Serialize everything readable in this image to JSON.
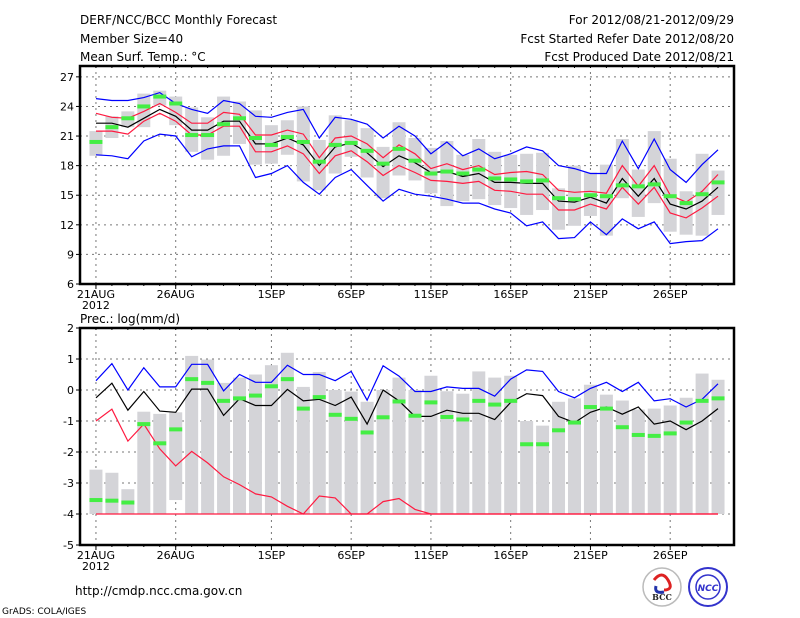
{
  "header": {
    "title": "DERF/NCC/BCC Monthly Forecast",
    "member_size": "Member Size=40",
    "variable": "Mean Surf. Temp.: °C",
    "period": "For 2012/08/21-2012/09/29",
    "started": "Fcst Started Refer Date 2012/08/20",
    "produced": "Fcst Produced Date 2012/08/21"
  },
  "footer": {
    "url": "http://cmdp.ncc.cma.gov.cn",
    "grads": "GrADS: COLA/IGES",
    "logo_bcc": "BCC",
    "logo_ncc": "NCC"
  },
  "colors": {
    "max_min": "#0000ff",
    "spread": "#ff1a40",
    "mean": "#000000",
    "green": "#44ee44",
    "gray": "#d4d4d8"
  },
  "chart_data": [
    {
      "type": "line",
      "title": "Mean Surf. Temp.: °C",
      "ylim": [
        6,
        28.1
      ],
      "yticks": [
        6,
        9,
        12,
        15,
        18,
        21,
        24,
        27
      ],
      "xlim_days": [
        0,
        41
      ],
      "xticks": [
        {
          "day": 1,
          "label": "21AUG",
          "sub": "2012"
        },
        {
          "day": 6,
          "label": "26AUG"
        },
        {
          "day": 12,
          "label": "1SEP"
        },
        {
          "day": 17,
          "label": "6SEP"
        },
        {
          "day": 22,
          "label": "11SEP"
        },
        {
          "day": 27,
          "label": "16SEP"
        },
        {
          "day": 32,
          "label": "21SEP"
        },
        {
          "day": 37,
          "label": "26SEP"
        }
      ],
      "grid": true,
      "series": [
        {
          "name": "max",
          "color": "#0000ff",
          "values": [
            24.8,
            24.6,
            24.6,
            24.9,
            25.4,
            24.3,
            23.7,
            23.3,
            24.6,
            24.3,
            23.0,
            22.9,
            23.4,
            23.7,
            20.8,
            22.9,
            22.7,
            22.2,
            20.8,
            22.0,
            21.0,
            19.2,
            20.4,
            19.0,
            19.7,
            18.7,
            19.2,
            19.9,
            19.5,
            18.0,
            17.7,
            17.2,
            17.2,
            20.5,
            17.7,
            20.7,
            17.6,
            16.3,
            18.1,
            19.6
          ]
        },
        {
          "name": "spread-upper",
          "color": "#ff1a40",
          "values": [
            23.3,
            22.9,
            22.8,
            23.5,
            24.3,
            23.4,
            22.3,
            22.3,
            23.4,
            23.2,
            21.1,
            21.1,
            21.6,
            21.2,
            18.8,
            20.8,
            21.0,
            20.2,
            18.8,
            20.1,
            19.2,
            17.7,
            18.2,
            17.6,
            18.0,
            17.1,
            17.3,
            17.4,
            17.1,
            15.5,
            15.3,
            15.4,
            15.2,
            18.0,
            15.9,
            18.0,
            15.0,
            14.3,
            15.4,
            17.1
          ]
        },
        {
          "name": "mean",
          "color": "#000000",
          "values": [
            22.3,
            22.3,
            21.9,
            22.8,
            23.7,
            23.0,
            21.6,
            21.6,
            22.5,
            22.5,
            20.2,
            20.2,
            20.8,
            20.1,
            18.0,
            19.9,
            20.3,
            19.3,
            17.9,
            19.0,
            18.3,
            17.3,
            17.4,
            16.9,
            17.2,
            16.3,
            16.3,
            16.2,
            16.2,
            14.4,
            14.3,
            14.8,
            14.2,
            16.7,
            14.9,
            16.7,
            14.1,
            13.6,
            14.4,
            15.8
          ]
        },
        {
          "name": "spread-lower",
          "color": "#ff1a40",
          "values": [
            21.5,
            21.5,
            21.2,
            22.5,
            23.3,
            22.5,
            21.1,
            21.1,
            22.0,
            22.0,
            19.4,
            19.4,
            20.0,
            19.2,
            17.2,
            19.0,
            19.5,
            18.4,
            17.0,
            18.0,
            17.3,
            16.5,
            16.4,
            16.2,
            16.4,
            15.5,
            15.4,
            15.1,
            15.1,
            13.5,
            13.5,
            14.1,
            13.6,
            15.8,
            14.1,
            15.8,
            13.2,
            12.7,
            13.7,
            14.9
          ]
        },
        {
          "name": "min",
          "color": "#0000ff",
          "values": [
            19.1,
            19.0,
            18.7,
            20.5,
            21.2,
            21.0,
            18.9,
            19.7,
            20.0,
            20.0,
            16.8,
            17.2,
            18.0,
            16.3,
            15.1,
            16.8,
            17.6,
            16.0,
            14.4,
            15.6,
            15.1,
            14.9,
            14.6,
            14.2,
            14.2,
            13.6,
            13.2,
            11.9,
            12.3,
            10.6,
            10.7,
            12.3,
            11.0,
            12.6,
            11.6,
            12.3,
            10.1,
            10.3,
            10.4,
            11.6
          ]
        }
      ],
      "markers": {
        "name": "green",
        "values": [
          20.4,
          21.9,
          22.8,
          24.0,
          25.0,
          24.3,
          21.1,
          21.1,
          22.2,
          22.8,
          20.8,
          20.1,
          20.9,
          20.4,
          18.4,
          20.1,
          20.3,
          19.5,
          18.2,
          19.7,
          18.5,
          17.2,
          17.4,
          17.2,
          17.6,
          16.7,
          16.6,
          16.4,
          16.5,
          14.7,
          14.6,
          15.0,
          14.9,
          16.0,
          15.9,
          16.1,
          14.9,
          14.2,
          15.1,
          16.3
        ]
      },
      "bars": {
        "name": "range",
        "low": [
          19.0,
          20.8,
          21.9,
          21.9,
          24.1,
          22.1,
          19.4,
          18.6,
          19.0,
          20.2,
          18.1,
          18.2,
          19.1,
          16.4,
          15.5,
          17.2,
          18.9,
          16.8,
          14.7,
          17.0,
          16.5,
          15.2,
          13.9,
          14.4,
          14.6,
          14.0,
          13.7,
          13.0,
          13.5,
          11.5,
          11.9,
          12.9,
          10.9,
          14.7,
          12.8,
          14.2,
          11.3,
          11.0,
          10.9,
          13.0
        ],
        "high": [
          21.5,
          23.0,
          23.5,
          25.3,
          25.6,
          25.0,
          23.9,
          22.9,
          25.0,
          24.5,
          23.6,
          22.1,
          22.6,
          24.0,
          20.6,
          23.1,
          22.6,
          21.8,
          19.9,
          22.4,
          20.8,
          19.8,
          20.5,
          19.1,
          20.7,
          19.4,
          19.1,
          19.2,
          19.3,
          15.7,
          18.0,
          17.3,
          18.1,
          20.7,
          17.6,
          21.5,
          18.7,
          15.4,
          19.2,
          17.5
        ]
      }
    },
    {
      "type": "line",
      "title": "Prec.: log(mm/d)",
      "ylim": [
        -5,
        2
      ],
      "yticks": [
        -5,
        -4,
        -3,
        -2,
        -1,
        0,
        1,
        2
      ],
      "xlim_days": [
        0,
        41
      ],
      "xticks": [
        {
          "day": 1,
          "label": "21AUG",
          "sub": "2012"
        },
        {
          "day": 6,
          "label": "26AUG"
        },
        {
          "day": 12,
          "label": "1SEP"
        },
        {
          "day": 17,
          "label": "6SEP"
        },
        {
          "day": 22,
          "label": "11SEP"
        },
        {
          "day": 27,
          "label": "16SEP"
        },
        {
          "day": 32,
          "label": "21SEP"
        },
        {
          "day": 37,
          "label": "26SEP"
        }
      ],
      "grid": true,
      "series": [
        {
          "name": "max",
          "color": "#0000ff",
          "values": [
            0.3,
            0.85,
            0.0,
            0.72,
            0.1,
            0.1,
            0.83,
            0.83,
            -0.03,
            0.5,
            0.25,
            0.25,
            0.8,
            0.5,
            0.5,
            0.3,
            0.6,
            -0.33,
            0.78,
            0.45,
            -0.05,
            -0.05,
            0.1,
            0.05,
            0.05,
            -0.2,
            0.35,
            0.65,
            0.6,
            -0.05,
            -0.25,
            0.05,
            0.25,
            -0.05,
            0.25,
            -0.35,
            -0.28,
            -0.55,
            -0.3,
            0.2
          ]
        },
        {
          "name": "mean",
          "color": "#000000",
          "values": [
            -0.25,
            0.22,
            -0.65,
            -0.05,
            -0.68,
            -0.72,
            0.03,
            0.03,
            -0.82,
            -0.28,
            -0.5,
            -0.5,
            0.02,
            -0.35,
            -0.3,
            -0.5,
            -0.23,
            -1.1,
            0.0,
            -0.35,
            -0.85,
            -0.85,
            -0.65,
            -0.75,
            -0.75,
            -0.95,
            -0.4,
            -0.12,
            -0.18,
            -0.85,
            -1.05,
            -0.72,
            -0.55,
            -0.78,
            -0.55,
            -1.1,
            -1.0,
            -1.28,
            -1.0,
            -0.6
          ]
        },
        {
          "name": "lower",
          "color": "#ff1a40",
          "values": [
            -1.0,
            -0.62,
            -1.65,
            -1.1,
            -1.9,
            -2.45,
            -1.98,
            -2.35,
            -2.8,
            -3.05,
            -3.35,
            -3.45,
            -3.75,
            -4.0,
            -3.42,
            -3.48,
            -4.0,
            -4.0,
            -3.6,
            -3.5,
            -3.85,
            -4.0,
            -4.0,
            -4.0,
            -4.0,
            -4.0,
            -4.0,
            -4.0,
            -4.0,
            -4.0,
            -4.0,
            -4.0,
            -4.0,
            -4.0,
            -4.0,
            -4.0,
            -4.0,
            -4.0,
            -4.0,
            -4.0
          ]
        },
        {
          "name": "floor",
          "color": "#ff1a40",
          "values": [
            -4.0,
            -4.0,
            -4.0,
            -4.0,
            -4.0,
            -4.0,
            -4.0,
            -4.0,
            -4.0,
            -4.0,
            -4.0,
            -4.0,
            -4.0,
            -4.0,
            -4.0,
            -4.0,
            -4.0,
            -4.0,
            -4.0,
            -4.0,
            -4.0,
            -4.0,
            -4.0,
            -4.0,
            -4.0,
            -4.0,
            -4.0,
            -4.0,
            -4.0,
            -4.0,
            -4.0,
            -4.0,
            -4.0,
            -4.0,
            -4.0,
            -4.0,
            -4.0,
            -4.0,
            -4.0,
            -4.0
          ]
        }
      ],
      "markers": {
        "name": "green",
        "values": [
          -3.55,
          -3.57,
          -3.63,
          -1.1,
          -1.72,
          -1.27,
          0.35,
          0.23,
          -0.35,
          -0.27,
          -0.18,
          0.12,
          0.35,
          -0.6,
          -0.23,
          -0.8,
          -0.93,
          -1.37,
          -0.88,
          -0.37,
          -0.83,
          -0.4,
          -0.87,
          -0.95,
          -0.35,
          -0.47,
          -0.35,
          -1.75,
          -1.75,
          -1.3,
          -1.05,
          -0.55,
          -0.6,
          -1.2,
          -1.45,
          -1.48,
          -1.4,
          -1.05,
          -0.35,
          -0.27
        ]
      },
      "bars": {
        "name": "range",
        "low": [
          -4,
          -4,
          -4,
          -4,
          -4,
          -3.55,
          -4,
          -4,
          -4,
          -4,
          -4,
          -4,
          -4,
          -4,
          -4,
          -4,
          -4,
          -4,
          -4,
          -4,
          -4,
          -4,
          -4,
          -4,
          -4,
          -4,
          -4,
          -4,
          -4,
          -4,
          -4,
          -4,
          -4,
          -4,
          -4,
          -4,
          -4,
          -4,
          -4,
          -4
        ],
        "high": [
          -2.57,
          -2.67,
          -3.2,
          -0.7,
          -0.77,
          -0.72,
          1.1,
          0.98,
          0.23,
          0.4,
          0.5,
          0.8,
          1.2,
          0.1,
          0.58,
          0.0,
          -0.05,
          -0.38,
          0.0,
          0.4,
          0.0,
          0.46,
          -0.04,
          -0.12,
          0.6,
          0.4,
          0.46,
          -1.0,
          -1.15,
          -0.38,
          -0.27,
          0.17,
          -0.15,
          -0.34,
          -0.63,
          -0.6,
          -0.5,
          -0.25,
          0.53,
          0.33
        ]
      }
    }
  ]
}
